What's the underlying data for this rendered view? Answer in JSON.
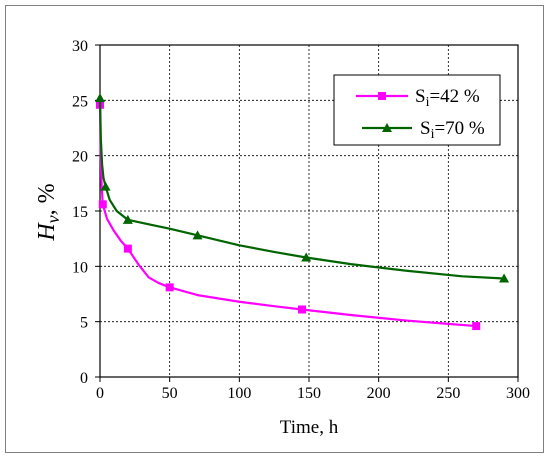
{
  "chart_data": {
    "type": "line",
    "title": "",
    "xlabel": "Time, h",
    "ylabel": {
      "symbol": "H",
      "subscript": "v",
      "unit": ", %"
    },
    "xlim": [
      0,
      300
    ],
    "ylim": [
      0,
      30
    ],
    "xticks": [
      0,
      50,
      100,
      150,
      200,
      250,
      300
    ],
    "yticks": [
      0,
      5,
      10,
      15,
      20,
      25,
      30
    ],
    "grid": true,
    "legend_position": "top-right",
    "series": [
      {
        "name": "Si=42 %",
        "name_parts": {
          "base": "S",
          "sub": "i",
          "rest": "=42 %"
        },
        "color": "#ff00ff",
        "marker": "square",
        "points": [
          [
            0,
            24.6
          ],
          [
            2,
            15.6
          ],
          [
            20,
            11.6
          ],
          [
            50,
            8.1
          ],
          [
            145,
            6.1
          ],
          [
            270,
            4.6
          ]
        ],
        "curve": [
          [
            0,
            24.6
          ],
          [
            0.5,
            20.0
          ],
          [
            1.2,
            17.2
          ],
          [
            2,
            15.6
          ],
          [
            5,
            14.3
          ],
          [
            10,
            13.2
          ],
          [
            15,
            12.3
          ],
          [
            20,
            11.6
          ],
          [
            28,
            10.1
          ],
          [
            35,
            9.0
          ],
          [
            42,
            8.5
          ],
          [
            50,
            8.1
          ],
          [
            70,
            7.4
          ],
          [
            100,
            6.8
          ],
          [
            125,
            6.4
          ],
          [
            145,
            6.1
          ],
          [
            180,
            5.6
          ],
          [
            220,
            5.1
          ],
          [
            250,
            4.8
          ],
          [
            270,
            4.6
          ]
        ]
      },
      {
        "name": "Si=70 %",
        "name_parts": {
          "base": "S",
          "sub": "i",
          "rest": "=70 %"
        },
        "color": "#006400",
        "marker": "triangle",
        "points": [
          [
            0,
            25.2
          ],
          [
            4,
            17.2
          ],
          [
            20,
            14.2
          ],
          [
            70,
            12.8
          ],
          [
            148,
            10.8
          ],
          [
            290,
            8.9
          ]
        ],
        "curve": [
          [
            0,
            25.2
          ],
          [
            0.6,
            21.5
          ],
          [
            1.5,
            19.2
          ],
          [
            2.5,
            18.0
          ],
          [
            4,
            17.2
          ],
          [
            7,
            16.0
          ],
          [
            12,
            15.0
          ],
          [
            20,
            14.2
          ],
          [
            35,
            13.8
          ],
          [
            50,
            13.4
          ],
          [
            70,
            12.8
          ],
          [
            100,
            11.9
          ],
          [
            125,
            11.3
          ],
          [
            148,
            10.8
          ],
          [
            180,
            10.2
          ],
          [
            220,
            9.6
          ],
          [
            260,
            9.1
          ],
          [
            290,
            8.9
          ]
        ]
      }
    ]
  }
}
